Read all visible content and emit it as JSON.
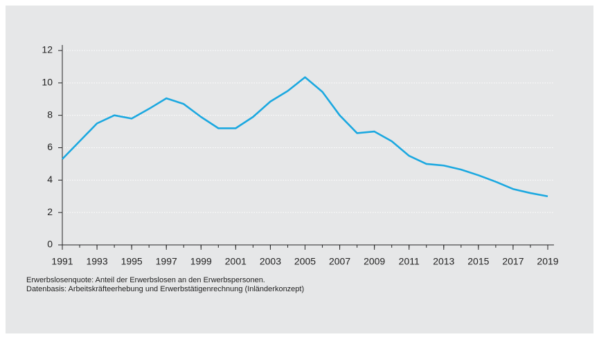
{
  "chart_data": {
    "type": "line",
    "x": [
      1991,
      1992,
      1993,
      1994,
      1995,
      1996,
      1997,
      1998,
      1999,
      2000,
      2001,
      2002,
      2003,
      2004,
      2005,
      2006,
      2007,
      2008,
      2009,
      2010,
      2011,
      2012,
      2013,
      2014,
      2015,
      2016,
      2017,
      2018,
      2019
    ],
    "series": [
      {
        "name": "Erwerbslosenquote",
        "color": "#1ba8e0",
        "values": [
          5.3,
          6.4,
          7.5,
          8.0,
          7.8,
          8.4,
          9.05,
          8.7,
          7.9,
          7.2,
          7.2,
          7.9,
          8.85,
          9.5,
          10.35,
          9.45,
          8.0,
          6.9,
          7.0,
          6.4,
          5.5,
          5.0,
          4.9,
          4.65,
          4.3,
          3.9,
          3.45,
          3.2,
          3.0
        ]
      }
    ],
    "xlim": [
      1991,
      2019
    ],
    "xticks": [
      1991,
      1993,
      1995,
      1997,
      1999,
      2001,
      2003,
      2005,
      2007,
      2009,
      2011,
      2013,
      2015,
      2017,
      2019
    ],
    "ylim": [
      0,
      12
    ],
    "yticks": [
      0,
      2,
      4,
      6,
      8,
      10,
      12
    ],
    "grid": true,
    "notes": [
      "Erwerbslosenquote: Anteil der Erwerbslosen an den Erwerbspersonen.",
      "Datenbasis: Arbeitskräfteerhebung und Erwerbstätigenrechnung (Inländerkonzept)"
    ]
  }
}
